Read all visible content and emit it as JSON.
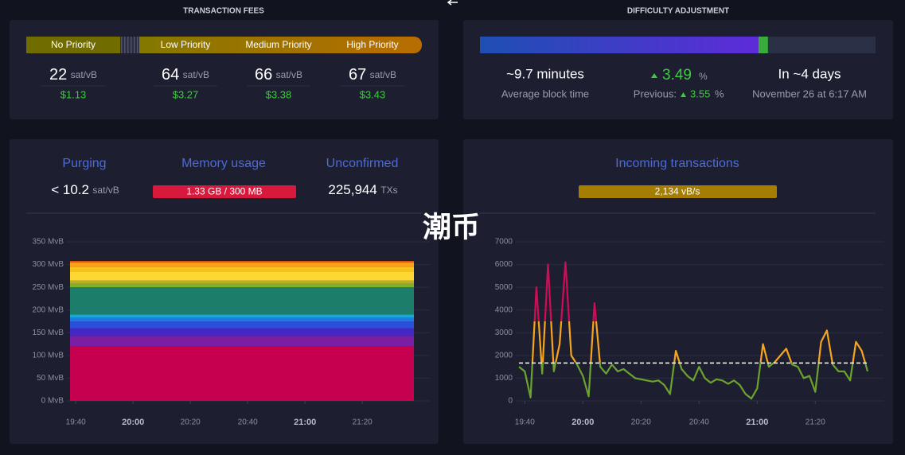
{
  "watermark": "潮币",
  "fees": {
    "title": "TRANSACTION FEES",
    "unit": "sat/vB",
    "priorities": [
      {
        "label": "No Priority",
        "rate": 22,
        "usd": "$1.13"
      },
      {
        "label": "Low Priority",
        "rate": 64,
        "usd": "$3.27"
      },
      {
        "label": "Medium Priority",
        "rate": 66,
        "usd": "$3.38"
      },
      {
        "label": "High Priority",
        "rate": 67,
        "usd": "$3.43"
      }
    ]
  },
  "difficulty": {
    "title": "DIFFICULTY ADJUSTMENT",
    "progress": [
      70.4,
      2.4
    ],
    "block_time": "~9.7 minutes",
    "block_time_label": "Average block time",
    "change": 3.49,
    "change_unit": "%",
    "previous_label": "Previous:",
    "previous": 3.55,
    "previous_unit": "%",
    "eta": "In ~4 days",
    "eta_date": "November 26 at 6:17 AM"
  },
  "mempool": {
    "purging_label": "Purging",
    "purging_value": "< 10.2",
    "purging_unit": "sat/vB",
    "memory_label": "Memory usage",
    "memory_value": "1.33 GB / 300 MB",
    "unconfirmed_label": "Unconfirmed",
    "unconfirmed_value": "225,944",
    "unconfirmed_unit": "TXs"
  },
  "incoming": {
    "label": "Incoming transactions",
    "value": "2,134 vB/s"
  },
  "chart_data": [
    {
      "type": "area",
      "stacked": true,
      "x": [
        "19:38",
        "20:38",
        "21:38"
      ],
      "series": [
        {
          "color": "#c6004e",
          "values": [
            120,
            120,
            120
          ]
        },
        {
          "color": "#7b1fa2",
          "values": [
            23,
            23,
            23
          ]
        },
        {
          "color": "#4527c7",
          "values": [
            17,
            17,
            17
          ]
        },
        {
          "color": "#2a4fd8",
          "values": [
            15,
            15,
            15
          ]
        },
        {
          "color": "#1e7be0",
          "values": [
            8,
            8,
            8
          ]
        },
        {
          "color": "#1da5d9",
          "values": [
            7,
            7,
            7
          ]
        },
        {
          "color": "#1d7d6b",
          "values": [
            60,
            60,
            60
          ]
        },
        {
          "color": "#7fb02a",
          "values": [
            8,
            8,
            8
          ]
        },
        {
          "color": "#b7b21e",
          "values": [
            7,
            7,
            7
          ]
        },
        {
          "color": "#fdd835",
          "values": [
            20,
            20,
            20
          ]
        },
        {
          "color": "#f6c21c",
          "values": [
            10,
            10,
            10
          ]
        },
        {
          "color": "#f8a01c",
          "values": [
            10,
            10,
            10
          ]
        },
        {
          "color": "#e2501a",
          "values": [
            3,
            3,
            3
          ]
        }
      ],
      "xlim": [
        "19:38",
        "21:38"
      ],
      "xticks": [
        "19:40",
        "20:00",
        "20:20",
        "20:40",
        "21:00",
        "21:20"
      ],
      "ylim": [
        0,
        350
      ],
      "yticks": [
        {
          "value": 0,
          "label": "0 MvB"
        },
        {
          "value": 50,
          "label": "50 MvB"
        },
        {
          "value": 100,
          "label": "100 MvB"
        },
        {
          "value": 150,
          "label": "150 MvB"
        },
        {
          "value": 200,
          "label": "200 MvB"
        },
        {
          "value": 250,
          "label": "250 MvB"
        },
        {
          "value": 300,
          "label": "300 MvB"
        },
        {
          "value": 350,
          "label": "350 MvB"
        }
      ],
      "grid": true
    },
    {
      "type": "line",
      "x": [
        "19:38",
        "19:40",
        "19:42",
        "19:44",
        "19:46",
        "19:48",
        "19:50",
        "19:52",
        "19:54",
        "19:56",
        "19:58",
        "20:00",
        "20:02",
        "20:04",
        "20:06",
        "20:08",
        "20:10",
        "20:12",
        "20:14",
        "20:16",
        "20:18",
        "20:20",
        "20:22",
        "20:24",
        "20:26",
        "20:28",
        "20:30",
        "20:32",
        "20:34",
        "20:36",
        "20:38",
        "20:40",
        "20:42",
        "20:44",
        "20:46",
        "20:48",
        "20:50",
        "20:52",
        "20:54",
        "20:56",
        "20:58",
        "21:00",
        "21:02",
        "21:04",
        "21:06",
        "21:08",
        "21:10",
        "21:12",
        "21:14",
        "21:16",
        "21:18",
        "21:20",
        "21:22",
        "21:24",
        "21:26",
        "21:28",
        "21:30",
        "21:32",
        "21:34",
        "21:36",
        "21:38"
      ],
      "values": [
        1500,
        1300,
        150,
        5000,
        1200,
        6000,
        1300,
        2500,
        6100,
        2000,
        1600,
        1100,
        200,
        4300,
        1500,
        1200,
        1600,
        1300,
        1400,
        1200,
        1000,
        950,
        900,
        850,
        900,
        700,
        300,
        2200,
        1400,
        1100,
        900,
        1500,
        1000,
        800,
        950,
        900,
        750,
        900,
        700,
        300,
        100,
        550,
        2500,
        1500,
        1700,
        2000,
        2300,
        1600,
        1500,
        1000,
        1100,
        400,
        2600,
        3100,
        1600,
        1300,
        1300,
        900,
        2600,
        2200,
        1300
      ],
      "color_stops": [
        {
          "from": 0,
          "color": "#6ba32c"
        },
        {
          "from": 1700,
          "color": "#f7a51c"
        },
        {
          "from": 3500,
          "color": "#d20b54"
        }
      ],
      "reference_line": 1667,
      "xlim": [
        "19:38",
        "21:38"
      ],
      "xticks": [
        "19:40",
        "20:00",
        "20:20",
        "20:40",
        "21:00",
        "21:20"
      ],
      "ylim": [
        0,
        7000
      ],
      "yticks": [
        0,
        1000,
        2000,
        3000,
        4000,
        5000,
        6000,
        7000
      ],
      "grid": true
    }
  ]
}
